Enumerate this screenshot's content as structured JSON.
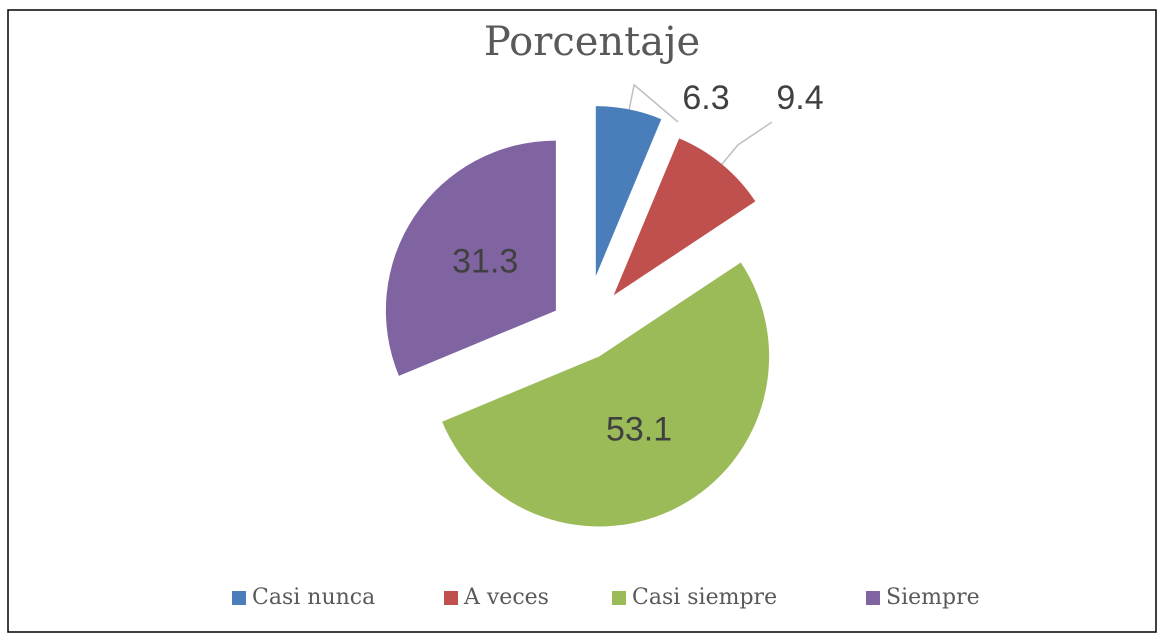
{
  "chart_data": {
    "type": "pie",
    "title": "Porcentaje",
    "categories": [
      "Casi nunca",
      "A veces",
      "Casi siempre",
      "Siempre"
    ],
    "values": [
      6.3,
      9.4,
      53.1,
      31.3
    ],
    "colors": [
      "#4a7ebb",
      "#c0504d",
      "#9bbb59",
      "#8064a2"
    ],
    "legend": "bottom"
  }
}
